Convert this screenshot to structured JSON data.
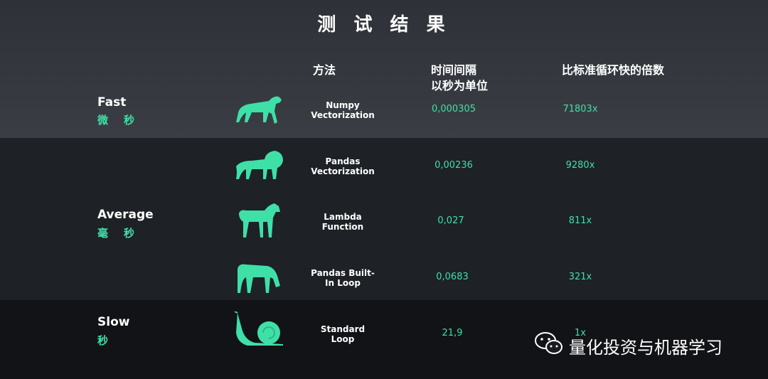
{
  "title": "测 试 结 果",
  "headers": {
    "method": "方法",
    "interval": "时间间隔\n以秒为单位",
    "multiple": "比标准循环快的倍数"
  },
  "tiers": [
    {
      "name": "Fast",
      "unit": "微秒"
    },
    {
      "name": "Average",
      "unit": "毫秒"
    },
    {
      "name": "Slow",
      "unit": "秒"
    }
  ],
  "rows": [
    {
      "animal": "cheetah-icon",
      "method_line1": "Numpy",
      "method_line2": "Vectorization",
      "interval": "0,000305",
      "multiple": "71803x"
    },
    {
      "animal": "lion-icon",
      "method_line1": "Pandas",
      "method_line2": "Vectorization",
      "interval": "0,00236",
      "multiple": "9280x"
    },
    {
      "animal": "horse-icon",
      "method_line1": "Lambda",
      "method_line2": "Function",
      "interval": "0,027",
      "multiple": "811x"
    },
    {
      "animal": "zebra-icon",
      "method_line1": "Pandas Built-",
      "method_line2": "In Loop",
      "interval": "0,0683",
      "multiple": "321x"
    },
    {
      "animal": "snail-icon",
      "method_line1": "Standard",
      "method_line2": "Loop",
      "interval": "21,9",
      "multiple": "1x"
    }
  ],
  "watermark": "量化投资与机器学习",
  "colors": {
    "accent": "#3ee0a8",
    "band_fast": "#34383e",
    "band_average": "#1e2126",
    "band_slow": "#121316"
  }
}
